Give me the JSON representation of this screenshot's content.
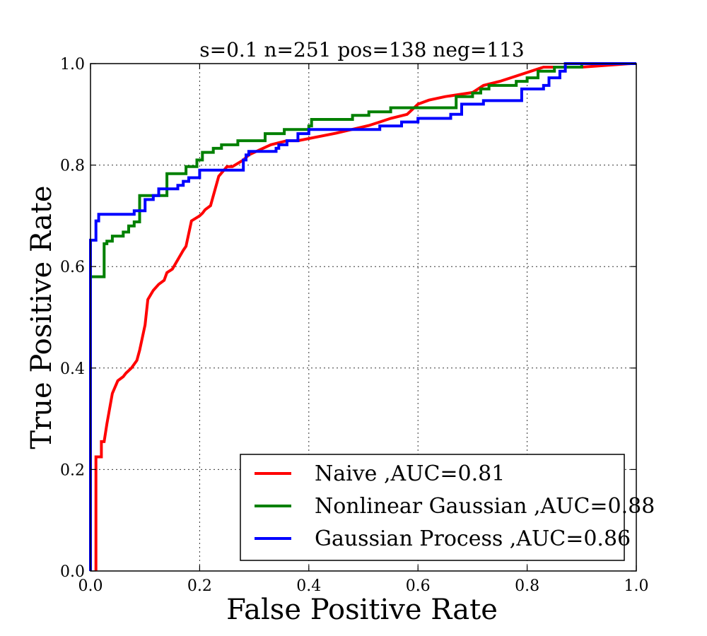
{
  "chart_data": {
    "type": "line",
    "title": "s=0.1 n=251 pos=138 neg=113",
    "xlabel": "False Positive Rate",
    "ylabel": "True Positive Rate",
    "xlim": [
      0,
      1
    ],
    "ylim": [
      0,
      1
    ],
    "xticks": [
      "0.0",
      "0.2",
      "0.4",
      "0.6",
      "0.8",
      "1.0"
    ],
    "yticks": [
      "0.0",
      "0.2",
      "0.4",
      "0.6",
      "0.8",
      "1.0"
    ],
    "grid": true,
    "legend_position": "lower-right",
    "series": [
      {
        "name": "Naive ,AUC=0.81",
        "color": "#ff0000",
        "x": [
          0.01,
          0.01,
          0.01,
          0.02,
          0.02,
          0.025,
          0.025,
          0.03,
          0.03,
          0.04,
          0.04,
          0.05,
          0.05,
          0.06,
          0.06,
          0.065,
          0.065,
          0.075,
          0.075,
          0.085,
          0.085,
          0.09,
          0.09,
          0.1,
          0.1,
          0.105,
          0.105,
          0.115,
          0.115,
          0.125,
          0.125,
          0.135,
          0.135,
          0.14,
          0.14,
          0.15,
          0.15,
          0.17,
          0.17,
          0.175,
          0.175,
          0.185,
          0.185,
          0.2,
          0.2,
          0.205,
          0.205,
          0.21,
          0.21,
          0.22,
          0.22,
          0.235,
          0.235,
          0.25,
          0.25,
          0.26,
          0.26,
          0.28,
          0.28,
          0.29,
          0.29,
          0.31,
          0.31,
          0.33,
          0.33,
          0.36,
          0.36,
          0.38,
          0.38,
          0.45,
          0.45,
          0.51,
          0.51,
          0.53,
          0.53,
          0.55,
          0.55,
          0.58,
          0.58,
          0.6,
          0.6,
          0.62,
          0.62,
          0.65,
          0.65,
          0.7,
          0.7,
          0.72,
          0.72,
          0.75,
          0.75,
          0.77,
          0.77,
          0.83,
          0.83,
          0.9,
          0.9,
          0.99,
          0.99,
          1.0
        ],
        "y": [
          0.0,
          0.225,
          0.225,
          0.225,
          0.255,
          0.255,
          0.255,
          0.29,
          0.29,
          0.35,
          0.35,
          0.375,
          0.375,
          0.383,
          0.383,
          0.39,
          0.39,
          0.4,
          0.4,
          0.415,
          0.415,
          0.435,
          0.435,
          0.485,
          0.485,
          0.535,
          0.535,
          0.553,
          0.553,
          0.565,
          0.565,
          0.573,
          0.573,
          0.588,
          0.588,
          0.595,
          0.595,
          0.632,
          0.632,
          0.64,
          0.64,
          0.69,
          0.69,
          0.7,
          0.7,
          0.705,
          0.705,
          0.712,
          0.712,
          0.72,
          0.72,
          0.778,
          0.778,
          0.797,
          0.797,
          0.797,
          0.797,
          0.81,
          0.81,
          0.82,
          0.82,
          0.83,
          0.83,
          0.84,
          0.84,
          0.848,
          0.848,
          0.848,
          0.848,
          0.863,
          0.863,
          0.878,
          0.878,
          0.885,
          0.885,
          0.892,
          0.892,
          0.9,
          0.9,
          0.92,
          0.92,
          0.928,
          0.928,
          0.935,
          0.935,
          0.943,
          0.943,
          0.957,
          0.957,
          0.965,
          0.965,
          0.972,
          0.972,
          0.993,
          0.993,
          0.993,
          0.993,
          1.0,
          1.0,
          1.0
        ]
      },
      {
        "name": "Nonlinear Gaussian ,AUC=0.88",
        "color": "#008000",
        "x": [
          0.0,
          0.0,
          0.0,
          0.025,
          0.025,
          0.03,
          0.03,
          0.04,
          0.04,
          0.06,
          0.06,
          0.07,
          0.07,
          0.08,
          0.08,
          0.09,
          0.09,
          0.14,
          0.14,
          0.175,
          0.175,
          0.195,
          0.195,
          0.205,
          0.205,
          0.225,
          0.225,
          0.24,
          0.24,
          0.27,
          0.27,
          0.32,
          0.32,
          0.355,
          0.355,
          0.4,
          0.4,
          0.405,
          0.405,
          0.48,
          0.48,
          0.51,
          0.51,
          0.55,
          0.55,
          0.67,
          0.67,
          0.7,
          0.7,
          0.715,
          0.715,
          0.73,
          0.73,
          0.78,
          0.78,
          0.8,
          0.8,
          0.82,
          0.82,
          0.85,
          0.85,
          0.9,
          0.9,
          1.0
        ],
        "y": [
          0.0,
          0.58,
          0.58,
          0.58,
          0.645,
          0.645,
          0.65,
          0.65,
          0.66,
          0.66,
          0.668,
          0.668,
          0.68,
          0.68,
          0.688,
          0.688,
          0.74,
          0.74,
          0.783,
          0.783,
          0.797,
          0.797,
          0.81,
          0.81,
          0.825,
          0.825,
          0.833,
          0.833,
          0.84,
          0.84,
          0.848,
          0.848,
          0.862,
          0.862,
          0.87,
          0.87,
          0.877,
          0.877,
          0.89,
          0.89,
          0.898,
          0.898,
          0.905,
          0.905,
          0.913,
          0.913,
          0.935,
          0.935,
          0.942,
          0.942,
          0.95,
          0.95,
          0.957,
          0.957,
          0.965,
          0.965,
          0.972,
          0.972,
          0.985,
          0.985,
          0.993,
          0.993,
          1.0,
          1.0
        ]
      },
      {
        "name": "Gaussian Process ,AUC=0.86",
        "color": "#0000ff",
        "x": [
          0.0,
          0.0,
          0.0,
          0.01,
          0.01,
          0.015,
          0.015,
          0.08,
          0.08,
          0.095,
          0.095,
          0.1,
          0.1,
          0.115,
          0.115,
          0.125,
          0.125,
          0.16,
          0.16,
          0.17,
          0.17,
          0.18,
          0.18,
          0.19,
          0.19,
          0.2,
          0.2,
          0.28,
          0.28,
          0.285,
          0.285,
          0.29,
          0.29,
          0.34,
          0.34,
          0.345,
          0.345,
          0.36,
          0.36,
          0.38,
          0.38,
          0.4,
          0.4,
          0.4,
          0.4,
          0.53,
          0.53,
          0.57,
          0.57,
          0.6,
          0.6,
          0.66,
          0.66,
          0.68,
          0.68,
          0.72,
          0.72,
          0.79,
          0.79,
          0.8,
          0.8,
          0.83,
          0.83,
          0.84,
          0.84,
          0.85,
          0.85,
          0.86,
          0.86,
          0.87,
          0.87,
          0.98,
          0.98,
          1.0
        ],
        "y": [
          0.0,
          0.652,
          0.652,
          0.652,
          0.69,
          0.69,
          0.703,
          0.703,
          0.71,
          0.71,
          0.71,
          0.71,
          0.732,
          0.732,
          0.74,
          0.74,
          0.753,
          0.753,
          0.76,
          0.76,
          0.768,
          0.768,
          0.775,
          0.775,
          0.775,
          0.775,
          0.79,
          0.79,
          0.81,
          0.81,
          0.82,
          0.82,
          0.827,
          0.827,
          0.833,
          0.833,
          0.84,
          0.84,
          0.848,
          0.848,
          0.862,
          0.862,
          0.862,
          0.862,
          0.87,
          0.87,
          0.877,
          0.877,
          0.885,
          0.885,
          0.892,
          0.892,
          0.9,
          0.9,
          0.92,
          0.92,
          0.927,
          0.927,
          0.95,
          0.95,
          0.95,
          0.95,
          0.957,
          0.957,
          0.972,
          0.972,
          0.972,
          0.972,
          0.985,
          0.985,
          1.0,
          1.0,
          1.0,
          1.0
        ]
      }
    ]
  }
}
